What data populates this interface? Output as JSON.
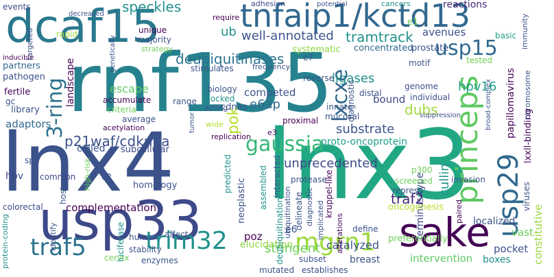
{
  "palette": {
    "dark_purple": "#440154",
    "indigo": "#3b528b",
    "slate": "#31688e",
    "teal": "#21918c",
    "green": "#35b779",
    "light_green": "#5ec962",
    "yellow_green": "#b5de2b",
    "lime": "#9bd93c"
  },
  "words": [
    {
      "text": "rnf135",
      "color": "#26828e"
    },
    {
      "text": "lnx3",
      "color": "#22a785"
    },
    {
      "text": "lnx4",
      "color": "#3b528b"
    },
    {
      "text": "usp33",
      "color": "#3e4989"
    },
    {
      "text": "dcaf15",
      "color": "#2a788e"
    },
    {
      "text": "tnfaip1/kctd13",
      "color": "#31688e"
    },
    {
      "text": "princeps",
      "color": "#5ec962"
    },
    {
      "text": "sake",
      "color": "#440154"
    },
    {
      "text": "usp29",
      "color": "#31688e"
    },
    {
      "text": "gaussia",
      "color": "#35b779"
    },
    {
      "text": "lxcxe",
      "color": "#31688e"
    },
    {
      "text": "mgrn1",
      "color": "#9bd93c"
    },
    {
      "text": "trim32",
      "color": "#21918c"
    },
    {
      "text": "traf5",
      "color": "#2c728e"
    },
    {
      "text": "usp15",
      "color": "#31688e"
    },
    {
      "text": "3-ring",
      "color": "#2c728e"
    },
    {
      "text": "p21waf/cdkn1a",
      "color": "#3b528b"
    },
    {
      "text": "deubiquitinases",
      "color": "#2c728e"
    },
    {
      "text": "well-annotated",
      "color": "#3b528b"
    },
    {
      "text": "tramtrack",
      "color": "#21918c"
    },
    {
      "text": "speckles",
      "color": "#21918c"
    },
    {
      "text": "ub",
      "color": "#21918c"
    },
    {
      "text": "hpv16",
      "color": "#1f9e89"
    },
    {
      "text": "e6ap",
      "color": "#31688e"
    },
    {
      "text": "pok",
      "color": "#b5de2b"
    },
    {
      "text": "dubs",
      "color": "#a0da39"
    },
    {
      "text": "cullin",
      "color": "#21918c"
    },
    {
      "text": "traf2",
      "color": "#482878"
    },
    {
      "text": "stringent",
      "color": "#6ece58"
    },
    {
      "text": "catalyzed",
      "color": "#3b528b"
    },
    {
      "text": "unprecedented",
      "color": "#3e4989"
    },
    {
      "text": "proto-oncoprotein",
      "color": "#1f9e89"
    },
    {
      "text": "substrate",
      "color": "#3b528b"
    },
    {
      "text": "ligases",
      "color": "#21918c"
    },
    {
      "text": "competed",
      "color": "#3b528b"
    },
    {
      "text": "bound",
      "color": "#3e4989"
    },
    {
      "text": "escape",
      "color": "#5ec962"
    },
    {
      "text": "landscape",
      "color": "#440154"
    },
    {
      "text": "complementation",
      "color": "#440154"
    },
    {
      "text": "hpv",
      "color": "#3e4989"
    },
    {
      "text": "adaptors",
      "color": "#31688e"
    },
    {
      "text": "pocket",
      "color": "#3b528b"
    },
    {
      "text": "constitutive",
      "color": "#9bd93c"
    },
    {
      "text": "vast",
      "color": "#6ece58"
    },
    {
      "text": "papillomavirus",
      "color": "#440154"
    },
    {
      "text": "terminus-type",
      "color": "#3e4989"
    },
    {
      "text": "poz",
      "color": "#440154"
    },
    {
      "text": "elucidation",
      "color": "#8fd744"
    },
    {
      "text": "e6",
      "color": "#3b528b"
    },
    {
      "text": "subset",
      "color": "#3b528b"
    },
    {
      "text": "breast",
      "color": "#3b528b"
    },
    {
      "text": "intervention",
      "color": "#5ec962"
    },
    {
      "text": "boxes",
      "color": "#21918c"
    },
    {
      "text": "localized",
      "color": "#3b528b"
    },
    {
      "text": "lxxll-binding",
      "color": "#440154"
    },
    {
      "text": "concentrated",
      "color": "#31688e"
    },
    {
      "text": "prostate",
      "color": "#3b528b"
    },
    {
      "text": "systematic",
      "color": "#8fd744"
    },
    {
      "text": "avenues",
      "color": "#3b528b"
    },
    {
      "text": "basic",
      "color": "#1f9e89"
    },
    {
      "text": "e1",
      "color": "#6ece58"
    },
    {
      "text": "reactions",
      "color": "#482878"
    },
    {
      "text": "adhesion",
      "color": "#3e4989"
    },
    {
      "text": "events",
      "color": "#3e4989"
    },
    {
      "text": "require",
      "color": "#440154"
    },
    {
      "text": "unique",
      "color": "#440154"
    },
    {
      "text": "majority",
      "color": "#3b528b"
    },
    {
      "text": "strategy",
      "color": "#6ece58"
    },
    {
      "text": "partners",
      "color": "#31688e"
    },
    {
      "text": "pathogen",
      "color": "#3b528b"
    },
    {
      "text": "fertile",
      "color": "#440154"
    },
    {
      "text": "library",
      "color": "#3b528b"
    },
    {
      "text": "biology",
      "color": "#3b528b"
    },
    {
      "text": "accumulate",
      "color": "#440154"
    },
    {
      "text": "criteria",
      "color": "#6ece58"
    },
    {
      "text": "average",
      "color": "#3b528b"
    },
    {
      "text": "acetylation",
      "color": "#440154"
    },
    {
      "text": "subcellular",
      "color": "#3e4989"
    },
    {
      "text": "called",
      "color": "#3b528b"
    },
    {
      "text": "range",
      "color": "#3b528b"
    },
    {
      "text": "blocked",
      "color": "#21918c"
    },
    {
      "text": "acting",
      "color": "#3b528b"
    },
    {
      "text": "wide",
      "color": "#b5de2b"
    },
    {
      "text": "cdnas",
      "color": "#3b528b"
    },
    {
      "text": "stimulates",
      "color": "#3b528b"
    },
    {
      "text": "frequency",
      "color": "#3b528b"
    },
    {
      "text": "e7",
      "color": "#3b528b"
    },
    {
      "text": "motif",
      "color": "#3b528b"
    },
    {
      "text": "genome",
      "color": "#3b528b"
    },
    {
      "text": "individual",
      "color": "#3b528b"
    },
    {
      "text": "diagnostic",
      "color": "#3b528b"
    },
    {
      "text": "mucosal",
      "color": "#3b528b"
    },
    {
      "text": "innate",
      "color": "#3b528b"
    },
    {
      "text": "proximal",
      "color": "#440154"
    },
    {
      "text": "distal",
      "color": "#3b528b"
    },
    {
      "text": "reverse",
      "color": "#3b528b"
    },
    {
      "text": "e3",
      "color": "#440154"
    },
    {
      "text": "replication",
      "color": "#440154"
    },
    {
      "text": "protease",
      "color": "#3b528b"
    },
    {
      "text": "screened",
      "color": "#6ece58"
    },
    {
      "text": "p300",
      "color": "#6ece58"
    },
    {
      "text": "repress",
      "color": "#3b528b"
    },
    {
      "text": "invasion",
      "color": "#3b528b"
    },
    {
      "text": "oncogenesis",
      "color": "#b5de2b"
    },
    {
      "text": "kruppel-like",
      "color": "#440154"
    },
    {
      "text": "delineate",
      "color": "#3b528b"
    },
    {
      "text": "diagnostic2",
      "color": "#3b528b"
    },
    {
      "text": "alterations",
      "color": "#440154"
    },
    {
      "text": "implicated",
      "color": "#3b528b"
    },
    {
      "text": "define",
      "color": "#3b528b"
    },
    {
      "text": "preferentially",
      "color": "#6ece58"
    },
    {
      "text": "mutated",
      "color": "#3b528b"
    },
    {
      "text": "establishes",
      "color": "#3b528b"
    },
    {
      "text": "interacted",
      "color": "#3b528b"
    },
    {
      "text": "deubiquitination",
      "color": "#21918c"
    },
    {
      "text": "ubiquitination",
      "color": "#3b528b"
    },
    {
      "text": "assembled",
      "color": "#21918c"
    },
    {
      "text": "neoplastic",
      "color": "#3b528b"
    },
    {
      "text": "predicted",
      "color": "#21918c"
    },
    {
      "text": "homology",
      "color": "#3b528b"
    },
    {
      "text": "roleplays",
      "color": "#3b528b"
    },
    {
      "text": "e2",
      "color": "#3b528b"
    },
    {
      "text": "high-risk",
      "color": "#6ece58"
    },
    {
      "text": "common",
      "color": "#3e4989"
    },
    {
      "text": "sp1",
      "color": "#3b528b"
    },
    {
      "text": "colorectal",
      "color": "#3e4989"
    },
    {
      "text": "host",
      "color": "#3b528b"
    },
    {
      "text": "identify",
      "color": "#3b528b"
    },
    {
      "text": "luciferase",
      "color": "#21918c"
    },
    {
      "text": "human",
      "color": "#3b528b"
    },
    {
      "text": "affect",
      "color": "#3b528b"
    },
    {
      "text": "stability",
      "color": "#3b528b"
    },
    {
      "text": "cervix",
      "color": "#6ece58"
    },
    {
      "text": "enzymes",
      "color": "#3b528b"
    },
    {
      "text": "protein-coding",
      "color": "#21918c"
    },
    {
      "text": "viruses",
      "color": "#3b528b"
    },
    {
      "text": "chromosome",
      "color": "#3b528b"
    },
    {
      "text": "paired",
      "color": "#440154"
    },
    {
      "text": "tested",
      "color": "#6ece58"
    },
    {
      "text": "cancers",
      "color": "#21918c"
    },
    {
      "text": "immunity",
      "color": "#3b528b"
    },
    {
      "text": "genetically",
      "color": "#3b528b"
    },
    {
      "text": "rapid",
      "color": "#9bd93c"
    },
    {
      "text": "targeted",
      "color": "#3b528b"
    },
    {
      "text": "inducible",
      "color": "#440154"
    },
    {
      "text": "decreased",
      "color": "#3b528b"
    },
    {
      "text": "potential",
      "color": "#3b528b"
    },
    {
      "text": "gc",
      "color": "#3b528b"
    },
    {
      "text": "tumor",
      "color": "#3b528b"
    },
    {
      "text": "broad-complex",
      "color": "#3b528b"
    },
    {
      "text": "suppression",
      "color": "#3b528b"
    },
    {
      "text": "individual2",
      "color": "#3b528b"
    }
  ]
}
